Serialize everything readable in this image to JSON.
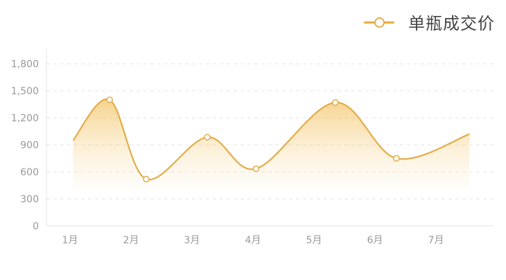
{
  "chart_data": {
    "type": "area",
    "categories": [
      "1月",
      "2月",
      "3月",
      "4月",
      "5月",
      "6月",
      "7月"
    ],
    "series": [
      {
        "name": "单瓶成交价",
        "color": "#e3ad48",
        "points": [
          {
            "x": 0.05,
            "y": 950
          },
          {
            "x": 0.65,
            "y": 1400
          },
          {
            "x": 1.25,
            "y": 520
          },
          {
            "x": 2.25,
            "y": 985
          },
          {
            "x": 3.05,
            "y": 635
          },
          {
            "x": 4.35,
            "y": 1370
          },
          {
            "x": 5.35,
            "y": 750
          },
          {
            "x": 6.55,
            "y": 1020
          }
        ]
      }
    ],
    "y_ticks": [
      "0",
      "300",
      "600",
      "900",
      "1,200",
      "1,500",
      "1,800"
    ],
    "ylim": [
      0,
      1800
    ],
    "legend_position": "top-right",
    "grid": "dashed horizontal"
  }
}
